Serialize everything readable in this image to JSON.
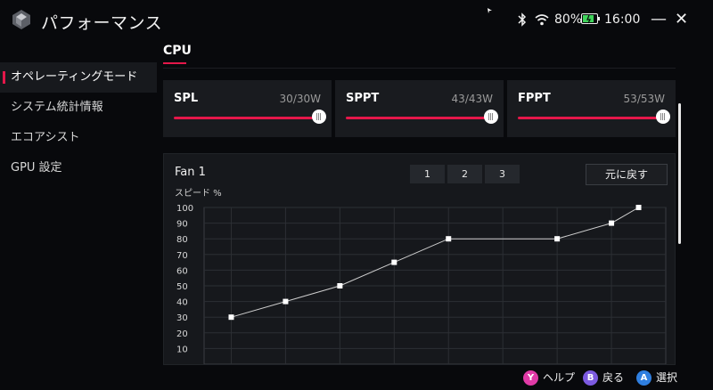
{
  "window": {
    "title": "パフォーマンス",
    "battery": "80%",
    "time": "16:00",
    "minimize_label": "—",
    "close_label": "✕"
  },
  "sidebar": {
    "items": [
      {
        "label": "オペレーティングモード",
        "active": true
      },
      {
        "label": "システム統計情報",
        "active": false
      },
      {
        "label": "エコアシスト",
        "active": false
      },
      {
        "label": "GPU 設定",
        "active": false
      }
    ]
  },
  "section": {
    "title": "CPU"
  },
  "sliders": [
    {
      "label": "SPL",
      "value": "30/30W",
      "level": 1.0
    },
    {
      "label": "SPPT",
      "value": "43/43W",
      "level": 1.0
    },
    {
      "label": "FPPT",
      "value": "53/53W",
      "level": 1.0
    }
  ],
  "fan": {
    "title": "Fan 1",
    "tabs": [
      "1",
      "2",
      "3"
    ],
    "reset_label": "元に戻す",
    "y_axis_label": "スピード %"
  },
  "chart_data": {
    "type": "line",
    "ylabel": "スピード %",
    "ylim": [
      0,
      100
    ],
    "yticks": [
      10,
      20,
      30,
      40,
      50,
      60,
      70,
      80,
      90,
      100
    ],
    "grid": true,
    "series": [
      {
        "x": [
          1,
          2,
          3,
          4,
          5,
          7,
          8,
          8.5
        ],
        "y": [
          30,
          40,
          50,
          65,
          80,
          80,
          90,
          100
        ]
      }
    ]
  },
  "footer": {
    "buttons": [
      {
        "key": "Y",
        "label": "ヘルプ",
        "color": "#e03aa6"
      },
      {
        "key": "B",
        "label": "戻る",
        "color": "#7c5ae0"
      },
      {
        "key": "A",
        "label": "選択",
        "color": "#2f7fe0"
      }
    ]
  },
  "colors": {
    "accent": "#e5174a",
    "background": "#08090c",
    "card": "#191b1f"
  }
}
